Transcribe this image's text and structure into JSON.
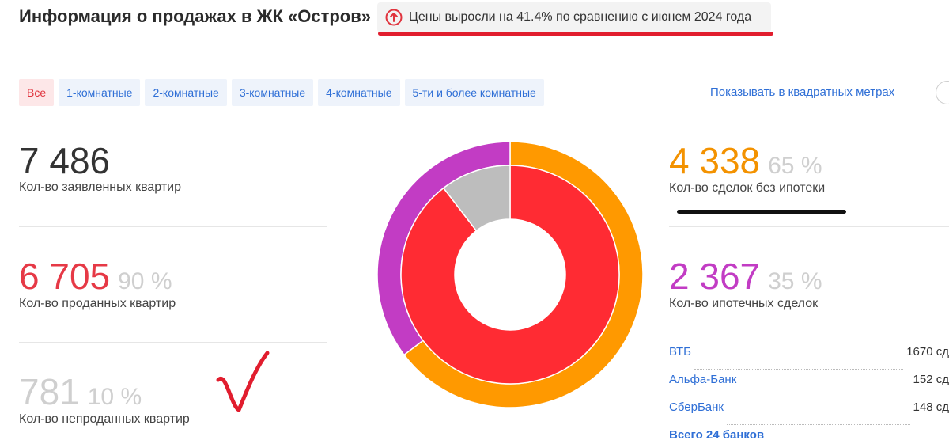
{
  "header": {
    "title": "Информация о продажах в ЖК «Остров»",
    "price_change": "Цены выросли на 41.4% по сравнению с июнем 2024 года"
  },
  "tabs": [
    {
      "label": "Все",
      "active": true
    },
    {
      "label": "1-комнатные",
      "active": false
    },
    {
      "label": "2-комнатные",
      "active": false
    },
    {
      "label": "3-комнатные",
      "active": false
    },
    {
      "label": "4-комнатные",
      "active": false
    },
    {
      "label": "5-ти и более комнатные",
      "active": false
    }
  ],
  "sqm_toggle_label": "Показывать в квадратных метрах",
  "left_stats": [
    {
      "value": "7 486",
      "percent": "",
      "label": "Кол-во заявленных квартир",
      "color": "#333333"
    },
    {
      "value": "6 705",
      "percent": "90 %",
      "label": "Кол-во проданных квартир",
      "color": "#e63946"
    },
    {
      "value": "781",
      "percent": "10 %",
      "label": "Кол-во непроданных квартир",
      "color": "#cfcfcf"
    }
  ],
  "right_stats": [
    {
      "value": "4 338",
      "percent": "65 %",
      "label": "Кол-во сделок без ипотеки",
      "color": "#f39200"
    },
    {
      "value": "2 367",
      "percent": "35 %",
      "label": "Кол-во ипотечных сделок",
      "color": "#c23cc4"
    }
  ],
  "banks": [
    {
      "name": "ВТБ",
      "value": "1670 сд"
    },
    {
      "name": "Альфа-Банк",
      "value": "152 сд"
    },
    {
      "name": "СберБанк",
      "value": "148 сд"
    }
  ],
  "banks_total": "Всего 24 банков",
  "chart_data": {
    "type": "pie",
    "inner_ring": [
      {
        "value": 6705,
        "color": "#ff2b33"
      },
      {
        "value": 781,
        "color": "#bdbdbd"
      }
    ],
    "outer_ring": [
      {
        "value": 4338,
        "color": "#ff9900"
      },
      {
        "value": 2367,
        "color": "#c23cc4"
      }
    ]
  }
}
